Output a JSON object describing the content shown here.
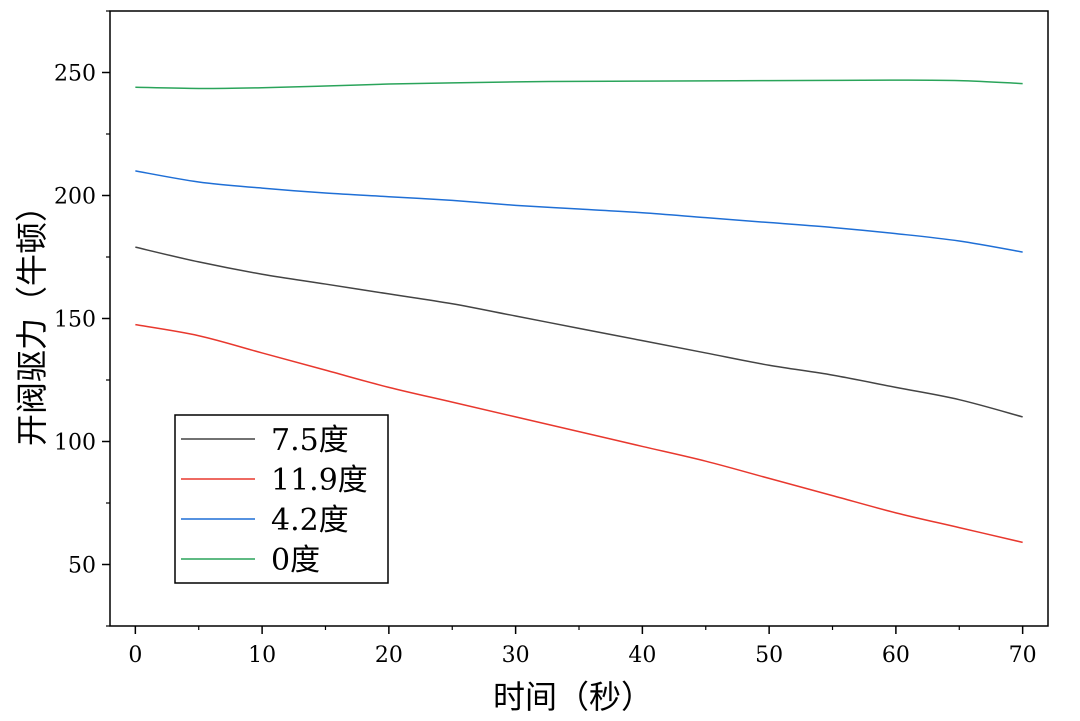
{
  "chart_data": {
    "type": "line",
    "xlabel": "时间（秒）",
    "ylabel": "开阀驱力（牛顿）",
    "xlim": [
      -2,
      72
    ],
    "ylim": [
      25,
      275
    ],
    "xticks": [
      0,
      10,
      20,
      30,
      40,
      50,
      60,
      70
    ],
    "yticks": [
      50,
      100,
      150,
      200,
      250
    ],
    "grid": false,
    "legend_position": "lower-left",
    "series": [
      {
        "name": "7.5度",
        "color": "#444444",
        "x": [
          0,
          5,
          10,
          15,
          20,
          25,
          30,
          35,
          40,
          45,
          50,
          55,
          60,
          65,
          70
        ],
        "y": [
          179,
          173,
          168,
          164,
          160,
          156,
          151,
          146,
          141,
          136,
          131,
          127,
          122,
          117,
          110
        ]
      },
      {
        "name": "11.9度",
        "color": "#e8382e",
        "x": [
          0,
          5,
          10,
          15,
          20,
          25,
          30,
          35,
          40,
          45,
          50,
          55,
          60,
          65,
          70
        ],
        "y": [
          147.5,
          143,
          136,
          129,
          122,
          116,
          110,
          104,
          98,
          92,
          85,
          78,
          71,
          65,
          59
        ]
      },
      {
        "name": "4.2度",
        "color": "#1f6fd6",
        "x": [
          0,
          5,
          10,
          15,
          20,
          25,
          30,
          35,
          40,
          45,
          50,
          55,
          60,
          65,
          70
        ],
        "y": [
          210,
          205.5,
          203,
          201,
          199.5,
          198,
          196,
          194.5,
          193,
          191,
          189,
          187,
          184.5,
          181.5,
          177
        ]
      },
      {
        "name": "0度",
        "color": "#2aa45a",
        "x": [
          0,
          5,
          10,
          15,
          20,
          25,
          30,
          35,
          40,
          45,
          50,
          55,
          60,
          65,
          70
        ],
        "y": [
          244,
          243.5,
          243.8,
          244.5,
          245.3,
          245.8,
          246.2,
          246.4,
          246.5,
          246.6,
          246.7,
          246.8,
          246.9,
          246.7,
          245.5
        ]
      }
    ]
  }
}
